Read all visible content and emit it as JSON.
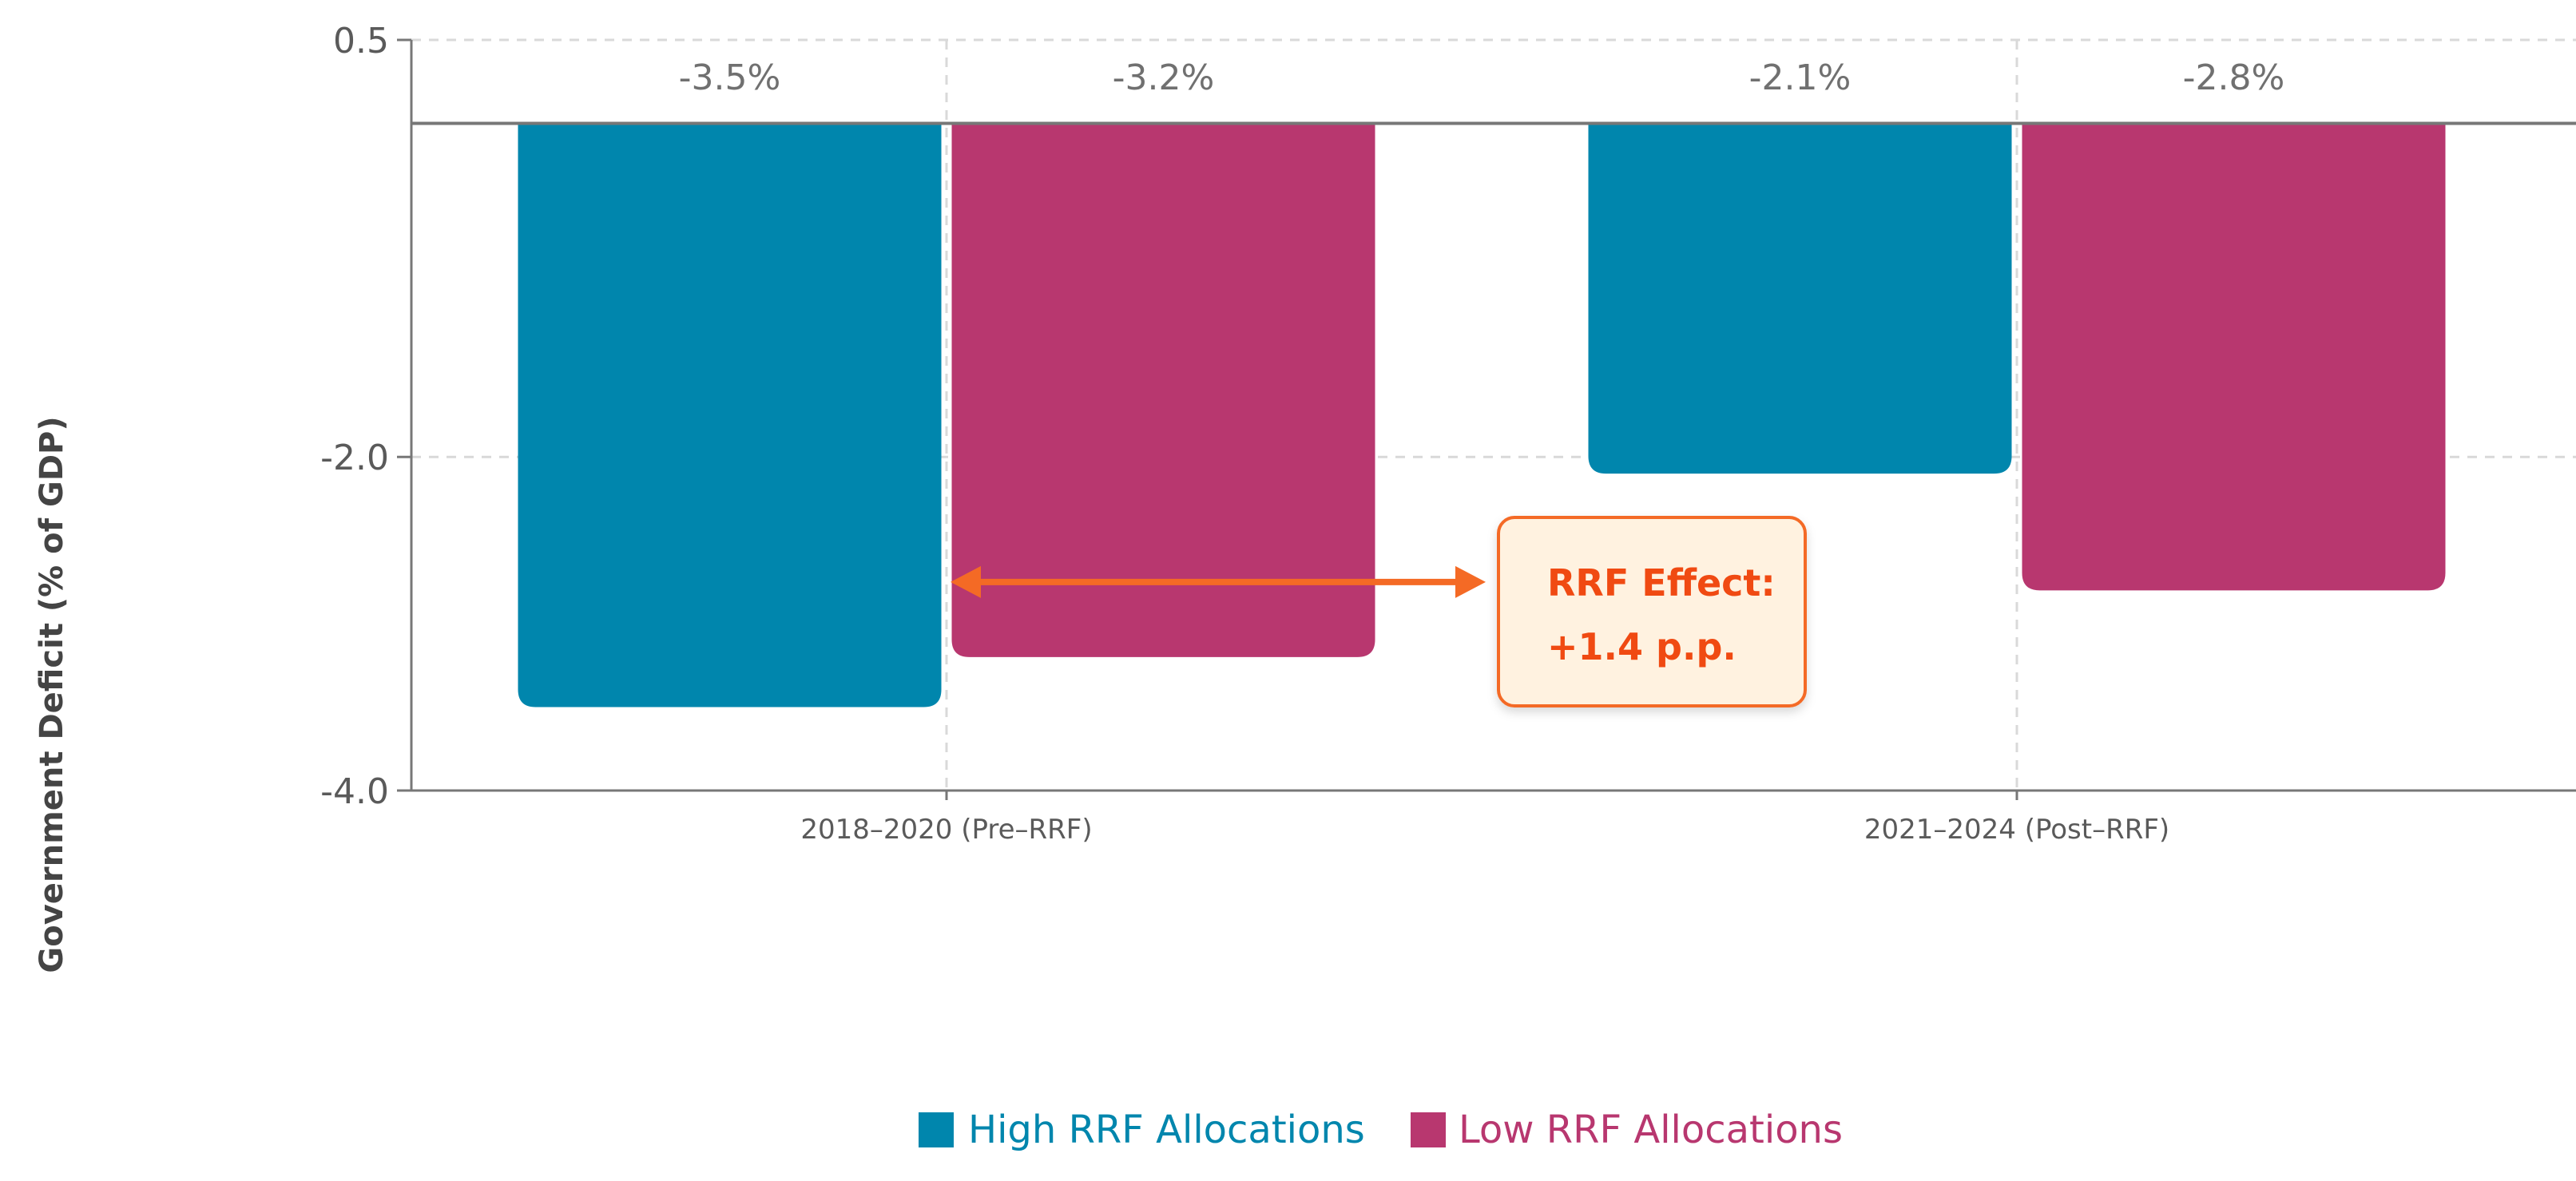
{
  "chart_data": {
    "type": "bar",
    "categories": [
      "2018–2020 (Pre–RRF)",
      "2021–2024 (Post–RRF)"
    ],
    "series": [
      {
        "name": "High RRF Allocations",
        "values": [
          -3.5,
          -2.1
        ],
        "labels": [
          "-3.5%",
          "-2.1%"
        ],
        "color": "#0086ad"
      },
      {
        "name": "Low RRF Allocations",
        "values": [
          -3.2,
          -2.8
        ],
        "labels": [
          "-3.2%",
          "-2.8%"
        ],
        "color": "#b8376f"
      }
    ],
    "title": "",
    "xlabel": "",
    "ylabel": "Government Deficit (% of GDP)",
    "ylim": [
      -4.0,
      0.5
    ],
    "yticks": [
      0.5,
      -2.0,
      -4.0
    ],
    "ytick_labels": [
      "0.5",
      "-2.0",
      "-4.0"
    ],
    "grid": true,
    "legend_position": "bottom-center",
    "annotation": {
      "line1": "RRF Effect:",
      "line2": "+1.4 p.p.",
      "value": 1.4,
      "color": "#f46a25",
      "text_color": "#f04a12",
      "fill": "#fff2e0"
    }
  }
}
